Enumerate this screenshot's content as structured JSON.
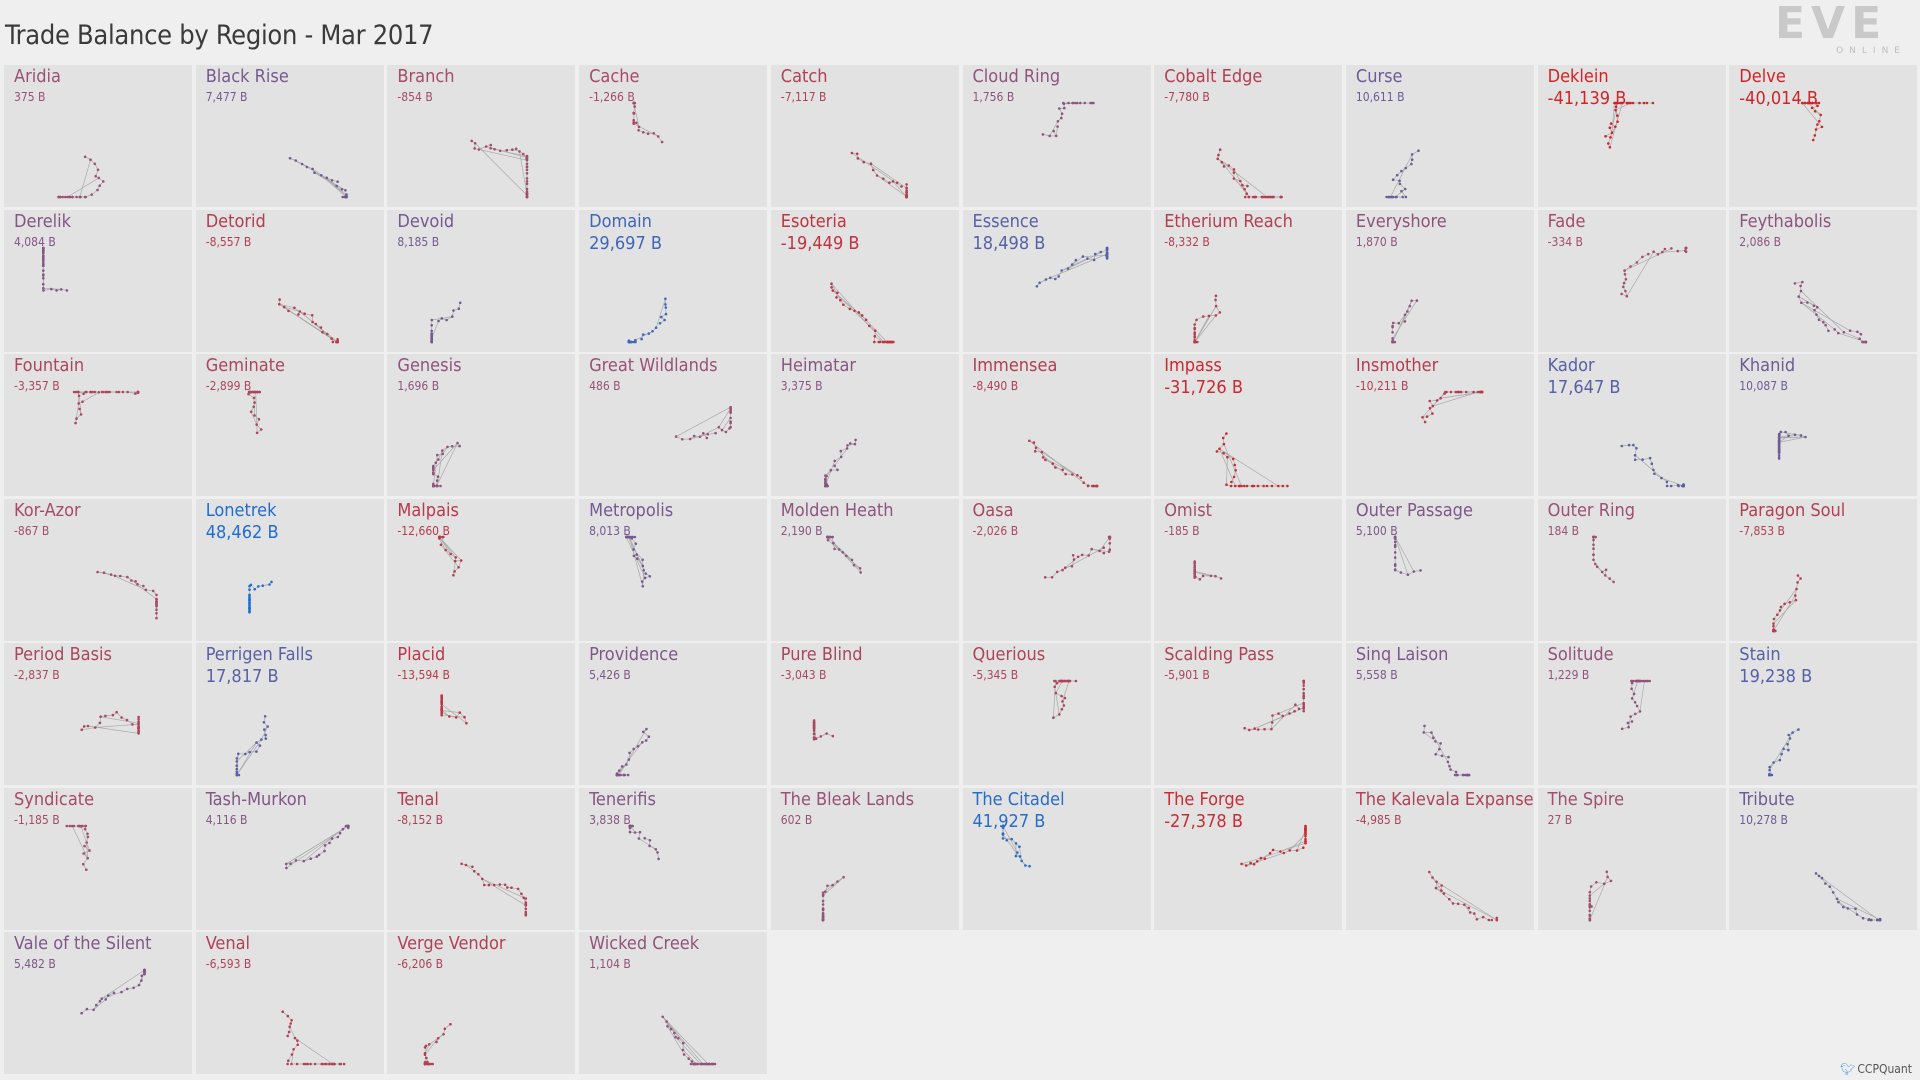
{
  "title": "Trade Balance by Region - Mar 2017",
  "logo": {
    "letters": "EVE",
    "sub": "ONLINE"
  },
  "credit": {
    "handle": "CCPQuant",
    "icon": "twitter-bird-icon"
  },
  "colors": {
    "positive": "#2f6fd0",
    "negative": "#d42626",
    "neutral": "#9a5070"
  },
  "regions": [
    {
      "name": "Aridia",
      "value": "375 B",
      "v": 375
    },
    {
      "name": "Black Rise",
      "value": "7,477 B",
      "v": 7477
    },
    {
      "name": "Branch",
      "value": "-854 B",
      "v": -854
    },
    {
      "name": "Cache",
      "value": "-1,266 B",
      "v": -1266
    },
    {
      "name": "Catch",
      "value": "-7,117 B",
      "v": -7117
    },
    {
      "name": "Cloud Ring",
      "value": "1,756 B",
      "v": 1756
    },
    {
      "name": "Cobalt Edge",
      "value": "-7,780 B",
      "v": -7780
    },
    {
      "name": "Curse",
      "value": "10,611 B",
      "v": 10611
    },
    {
      "name": "Deklein",
      "value": "-41,139 B",
      "v": -41139
    },
    {
      "name": "Delve",
      "value": "-40,014 B",
      "v": -40014
    },
    {
      "name": "Derelik",
      "value": "4,084 B",
      "v": 4084
    },
    {
      "name": "Detorid",
      "value": "-8,557 B",
      "v": -8557
    },
    {
      "name": "Devoid",
      "value": "8,185 B",
      "v": 8185
    },
    {
      "name": "Domain",
      "value": "29,697 B",
      "v": 29697
    },
    {
      "name": "Esoteria",
      "value": "-19,449 B",
      "v": -19449
    },
    {
      "name": "Essence",
      "value": "18,498 B",
      "v": 18498
    },
    {
      "name": "Etherium Reach",
      "value": "-8,332 B",
      "v": -8332
    },
    {
      "name": "Everyshore",
      "value": "1,870 B",
      "v": 1870
    },
    {
      "name": "Fade",
      "value": "-334 B",
      "v": -334
    },
    {
      "name": "Feythabolis",
      "value": "2,086 B",
      "v": 2086
    },
    {
      "name": "Fountain",
      "value": "-3,357 B",
      "v": -3357
    },
    {
      "name": "Geminate",
      "value": "-2,899 B",
      "v": -2899
    },
    {
      "name": "Genesis",
      "value": "1,696 B",
      "v": 1696
    },
    {
      "name": "Great Wildlands",
      "value": "486 B",
      "v": 486
    },
    {
      "name": "Heimatar",
      "value": "3,375 B",
      "v": 3375
    },
    {
      "name": "Immensea",
      "value": "-8,490 B",
      "v": -8490
    },
    {
      "name": "Impass",
      "value": "-31,726 B",
      "v": -31726
    },
    {
      "name": "Insmother",
      "value": "-10,211 B",
      "v": -10211
    },
    {
      "name": "Kador",
      "value": "17,647 B",
      "v": 17647
    },
    {
      "name": "Khanid",
      "value": "10,087 B",
      "v": 10087
    },
    {
      "name": "Kor-Azor",
      "value": "-867 B",
      "v": -867
    },
    {
      "name": "Lonetrek",
      "value": "48,462 B",
      "v": 48462
    },
    {
      "name": "Malpais",
      "value": "-12,660 B",
      "v": -12660
    },
    {
      "name": "Metropolis",
      "value": "8,013 B",
      "v": 8013
    },
    {
      "name": "Molden Heath",
      "value": "2,190 B",
      "v": 2190
    },
    {
      "name": "Oasa",
      "value": "-2,026 B",
      "v": -2026
    },
    {
      "name": "Omist",
      "value": "-185 B",
      "v": -185
    },
    {
      "name": "Outer Passage",
      "value": "5,100 B",
      "v": 5100
    },
    {
      "name": "Outer Ring",
      "value": "184 B",
      "v": 184
    },
    {
      "name": "Paragon Soul",
      "value": "-7,853 B",
      "v": -7853
    },
    {
      "name": "Period Basis",
      "value": "-2,837 B",
      "v": -2837
    },
    {
      "name": "Perrigen Falls",
      "value": "17,817 B",
      "v": 17817
    },
    {
      "name": "Placid",
      "value": "-13,594 B",
      "v": -13594
    },
    {
      "name": "Providence",
      "value": "5,426 B",
      "v": 5426
    },
    {
      "name": "Pure Blind",
      "value": "-3,043 B",
      "v": -3043
    },
    {
      "name": "Querious",
      "value": "-5,345 B",
      "v": -5345
    },
    {
      "name": "Scalding Pass",
      "value": "-5,901 B",
      "v": -5901
    },
    {
      "name": "Sinq Laison",
      "value": "5,558 B",
      "v": 5558
    },
    {
      "name": "Solitude",
      "value": "1,229 B",
      "v": 1229
    },
    {
      "name": "Stain",
      "value": "19,238 B",
      "v": 19238
    },
    {
      "name": "Syndicate",
      "value": "-1,185 B",
      "v": -1185
    },
    {
      "name": "Tash-Murkon",
      "value": "4,116 B",
      "v": 4116
    },
    {
      "name": "Tenal",
      "value": "-8,152 B",
      "v": -8152
    },
    {
      "name": "Tenerifis",
      "value": "3,838 B",
      "v": 3838
    },
    {
      "name": "The Bleak Lands",
      "value": "602 B",
      "v": 602
    },
    {
      "name": "The Citadel",
      "value": "41,927 B",
      "v": 41927
    },
    {
      "name": "The Forge",
      "value": "-27,378 B",
      "v": -27378
    },
    {
      "name": "The Kalevala Expanse",
      "value": "-4,985 B",
      "v": -4985
    },
    {
      "name": "The Spire",
      "value": "27 B",
      "v": 27
    },
    {
      "name": "Tribute",
      "value": "10,278 B",
      "v": 10278
    },
    {
      "name": "Vale of the Silent",
      "value": "5,482 B",
      "v": 5482
    },
    {
      "name": "Venal",
      "value": "-6,593 B",
      "v": -6593
    },
    {
      "name": "Verge Vendor",
      "value": "-6,206 B",
      "v": -6206
    },
    {
      "name": "Wicked Creek",
      "value": "1,104 B",
      "v": 1104
    }
  ]
}
